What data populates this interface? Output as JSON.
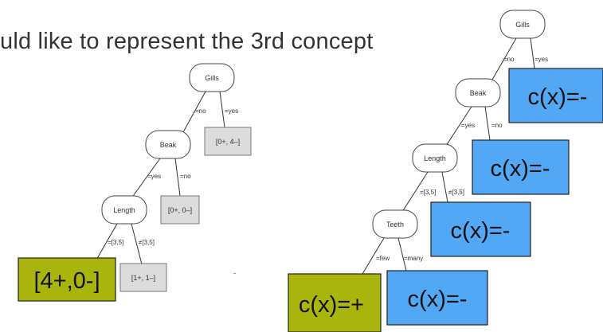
{
  "slide": {
    "heading": "uld like to represent the 3rd concept"
  },
  "left_tree": {
    "nodes": {
      "gills": "Gills",
      "beak": "Beak",
      "length": "Length"
    },
    "edges": {
      "gills_no": "=no",
      "gills_yes": "=yes",
      "beak_yes": "=yes",
      "beak_no": "=no",
      "length_in": "=[3,5]",
      "length_out": "≠[3,5]"
    },
    "leaves": {
      "gills_yes_leaf": "[0+, 4–]",
      "beak_no_leaf": "[0+, 0–]",
      "length_out_leaf": "[1+, 1–]",
      "length_in_leaf": "[4+,0-]"
    },
    "colors": {
      "highlight_leaf": "#a9b40d",
      "leaf_fill": "#dcdcdc"
    }
  },
  "right_tree": {
    "nodes": {
      "gills": "Gills",
      "beak": "Beak",
      "length": "Length",
      "teeth": "Teeth"
    },
    "edges": {
      "gills_no": "=no",
      "gills_yes": "=yes",
      "beak_yes": "=yes",
      "beak_no": "=no",
      "length_in": "=[3,5]",
      "length_out": "≠[3,5]",
      "teeth_few": "=few",
      "teeth_many": "=many"
    },
    "leaves": {
      "gills_yes_leaf": "c(x)=-",
      "beak_no_leaf": "c(x)=-",
      "length_out_leaf": "c(x)=-",
      "teeth_many_leaf": "c(x)=-",
      "teeth_few_leaf": "c(x)=+"
    },
    "colors": {
      "negative_leaf": "#52a8f5",
      "positive_leaf": "#a9b40d"
    }
  }
}
